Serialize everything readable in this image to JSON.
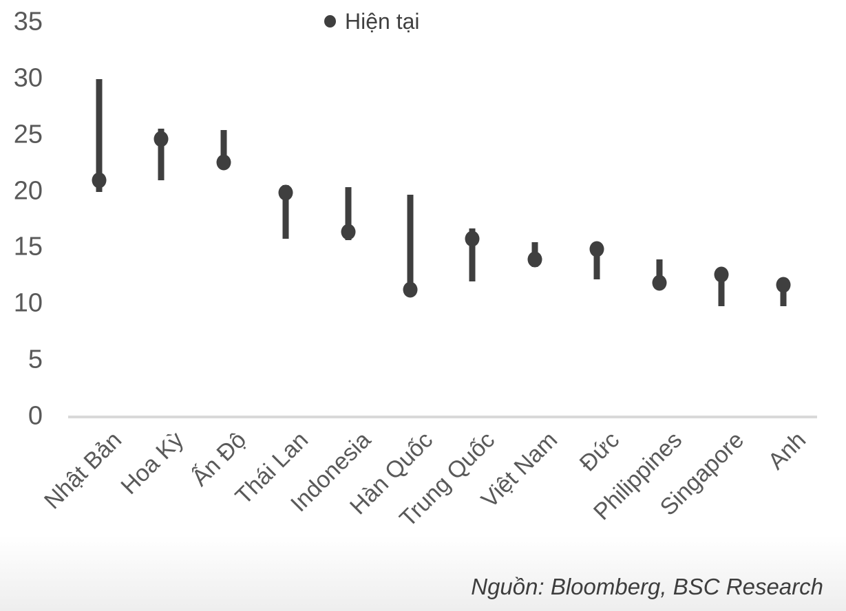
{
  "chart_data": {
    "type": "range-dot",
    "title": "",
    "legend_label": "Hiện tại",
    "source": "Nguồn: Bloomberg, BSC Research",
    "ylim": [
      0,
      35
    ],
    "yticks": [
      35,
      30,
      25,
      20,
      15,
      10,
      5,
      0
    ],
    "grid": "off",
    "legend_position": "top-center",
    "categories": [
      "Nhật Bản",
      "Hoa Kỳ",
      "Ấn Độ",
      "Thái Lan",
      "Indonesia",
      "Hàn Quốc",
      "Trung Quốc",
      "Việt Nam",
      "Đức",
      "Philippines",
      "Singapore",
      "Anh"
    ],
    "series": [
      {
        "type": "range-bar",
        "high": [
          30.0,
          25.6,
          25.5,
          20.6,
          20.4,
          19.7,
          16.7,
          15.5,
          15.2,
          14.0,
          12.8,
          11.9
        ],
        "low": [
          20.0,
          21.0,
          22.4,
          15.8,
          15.7,
          11.2,
          12.0,
          13.3,
          12.2,
          11.3,
          9.8,
          9.8
        ]
      },
      {
        "name": "Hiện tại",
        "type": "dot",
        "values": [
          21.0,
          24.7,
          22.6,
          19.9,
          16.4,
          11.3,
          15.8,
          14.0,
          14.9,
          11.9,
          12.6,
          11.7
        ]
      }
    ],
    "colors": {
      "mark": "#3f3f3f",
      "axis_line": "#d9d9d9",
      "tick_text": "#595959",
      "category_text": "#595959",
      "legend_text": "#404040",
      "source_text": "#3d3d3d"
    }
  }
}
